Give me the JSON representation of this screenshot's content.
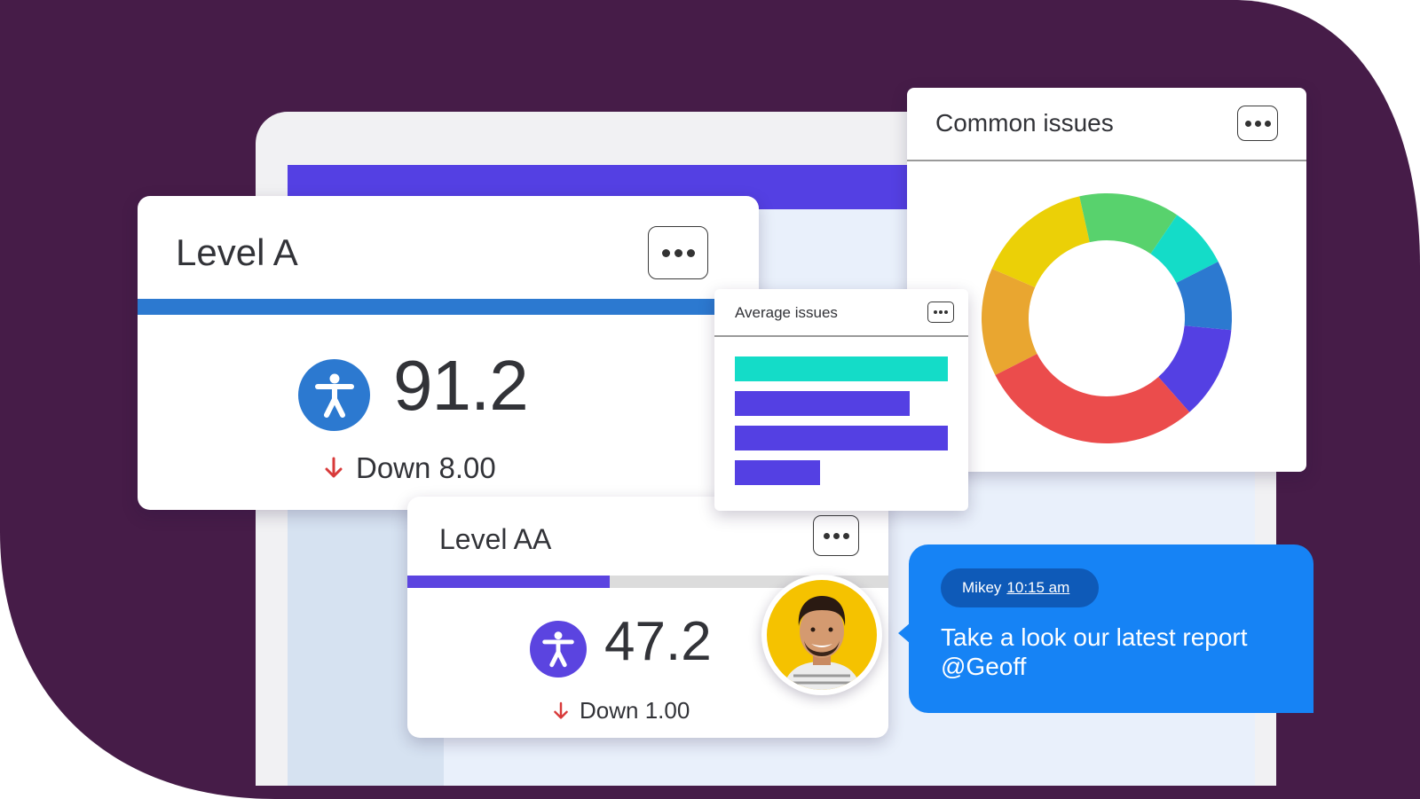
{
  "colors": {
    "backdrop": "#461c48",
    "brand_purple": "#5440e3",
    "level_a_blue": "#2c79d0",
    "level_aa_purple": "#5b44e0",
    "down_red": "#d83a3a",
    "chat_blue": "#1683f5"
  },
  "level_a": {
    "title": "Level A",
    "score": "91.2",
    "delta_label": "Down 8.00",
    "progress_fraction": 0.94,
    "icon": "accessibility-icon",
    "arrow_icon": "arrow-down-icon"
  },
  "level_aa": {
    "title": "Level AA",
    "score": "47.2",
    "delta_label": "Down 1.00",
    "progress_fraction": 0.42,
    "icon": "accessibility-icon",
    "arrow_icon": "arrow-down-icon"
  },
  "common_issues": {
    "title": "Common issues",
    "segments": [
      {
        "color": "#e9a630",
        "share": 0.14
      },
      {
        "color": "#ebd007",
        "share": 0.15
      },
      {
        "color": "#58d26d",
        "share": 0.13
      },
      {
        "color": "#14dcc8",
        "share": 0.08
      },
      {
        "color": "#2c79d0",
        "share": 0.09
      },
      {
        "color": "#5440e3",
        "share": 0.12
      },
      {
        "color": "#eb4c4c",
        "share": 0.29
      }
    ]
  },
  "average_issues": {
    "title": "Average issues",
    "bars": [
      {
        "color": "#14dcc8",
        "value": 1.0
      },
      {
        "color": "#5440e3",
        "value": 0.82
      },
      {
        "color": "#5440e3",
        "value": 1.0
      },
      {
        "color": "#5440e3",
        "value": 0.4
      }
    ]
  },
  "chat": {
    "author": "Mikey",
    "time": "10:15 am",
    "message": "Take a look our latest report @Geoff"
  },
  "menu_icon": "more-options-icon"
}
